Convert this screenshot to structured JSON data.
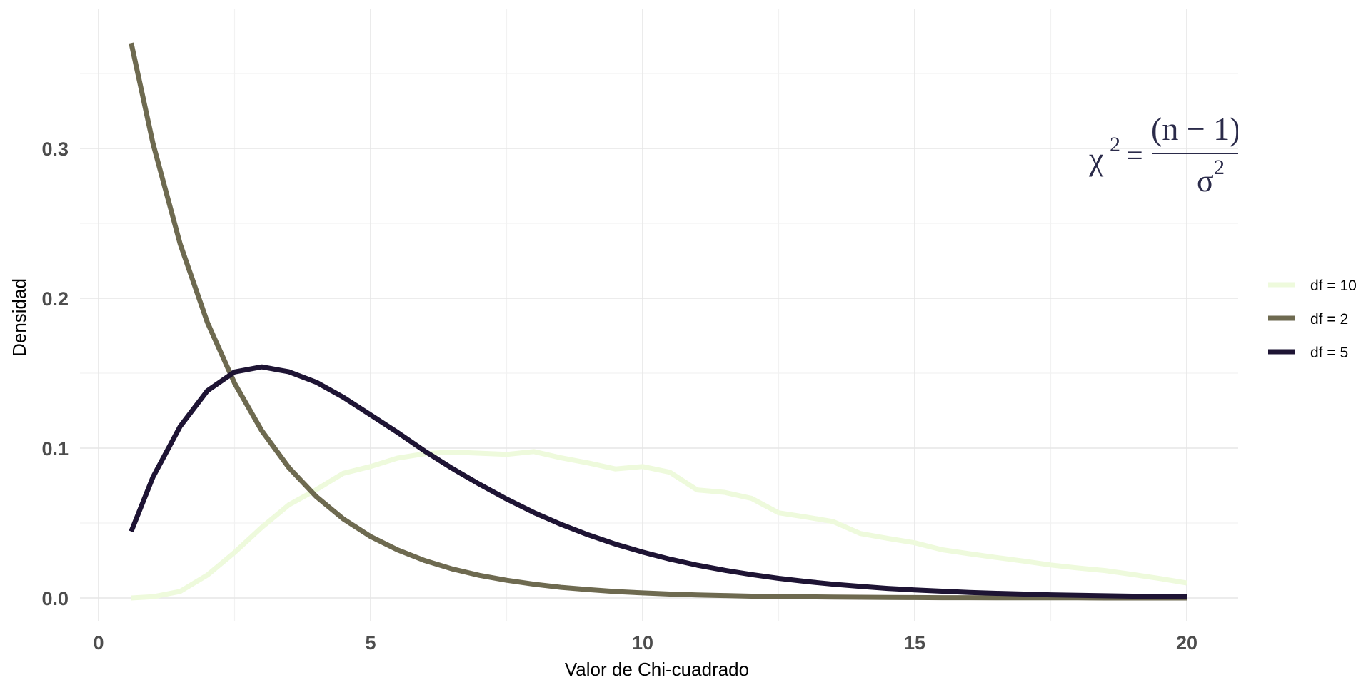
{
  "chart_data": {
    "type": "line",
    "title": "",
    "xlabel": "Valor de Chi-cuadrado",
    "ylabel": "Densidad",
    "xlim": [
      -0.3,
      21
    ],
    "ylim": [
      -0.017,
      0.39
    ],
    "x_ticks": [
      0,
      5,
      10,
      15,
      20
    ],
    "x_tick_labels": [
      "0",
      "5",
      "10",
      "15",
      "20"
    ],
    "y_ticks": [
      0.0,
      0.1,
      0.2,
      0.3
    ],
    "y_tick_labels": [
      "0.0",
      "0.1",
      "0.2",
      "0.3"
    ],
    "grid": true,
    "legend_position": "right",
    "x": [
      0.6,
      1,
      1.5,
      2,
      2.5,
      3,
      3.5,
      4,
      4.5,
      5,
      5.5,
      6,
      6.5,
      7,
      7.5,
      8,
      8.5,
      9,
      9.5,
      10,
      10.5,
      11,
      11.5,
      12,
      12.5,
      13,
      13.5,
      14,
      14.5,
      15,
      15.5,
      16,
      16.5,
      17,
      17.5,
      18,
      18.5,
      19,
      19.5,
      20
    ],
    "series": [
      {
        "name": "df = 10",
        "color": "#eefadc",
        "values": [
          2e-05,
          0.0008,
          0.0044,
          0.0153,
          0.0304,
          0.0471,
          0.0622,
          0.0722,
          0.0832,
          0.0877,
          0.0934,
          0.0963,
          0.0974,
          0.0966,
          0.0958,
          0.0977,
          0.0935,
          0.0901,
          0.0861,
          0.0877,
          0.0839,
          0.0721,
          0.0705,
          0.0665,
          0.0568,
          0.054,
          0.051,
          0.043,
          0.0398,
          0.0368,
          0.0322,
          0.0295,
          0.027,
          0.0246,
          0.022,
          0.02,
          0.0183,
          0.0157,
          0.013,
          0.01
        ]
      },
      {
        "name": "df = 2",
        "color": "#6e6a50",
        "values": [
          0.3704,
          0.3033,
          0.2362,
          0.1839,
          0.1433,
          0.1116,
          0.0869,
          0.0677,
          0.0527,
          0.041,
          0.032,
          0.0249,
          0.0194,
          0.0151,
          0.0118,
          0.0092,
          0.0071,
          0.0056,
          0.0043,
          0.0034,
          0.0026,
          0.002,
          0.0016,
          0.0012,
          0.001,
          0.0008,
          0.0006,
          0.0005,
          0.0004,
          0.0003,
          0.0002,
          0.0002,
          0.0001,
          0.0001,
          0.0001,
          0.0001,
          0.0,
          0.0,
          0.0,
          0.0
        ]
      },
      {
        "name": "df = 5",
        "color": "#1e1434",
        "values": [
          0.0444,
          0.0807,
          0.1145,
          0.1383,
          0.1508,
          0.1542,
          0.1509,
          0.144,
          0.1339,
          0.1222,
          0.1104,
          0.0979,
          0.0865,
          0.0759,
          0.066,
          0.057,
          0.0491,
          0.0421,
          0.0359,
          0.0306,
          0.0259,
          0.0219,
          0.0185,
          0.0156,
          0.0131,
          0.011,
          0.0092,
          0.0077,
          0.0064,
          0.0054,
          0.0045,
          0.0037,
          0.0031,
          0.0026,
          0.0021,
          0.0018,
          0.0015,
          0.0012,
          0.001,
          0.0008
        ]
      }
    ],
    "annotation": {
      "lhs": "χ",
      "lhs_sup": "2",
      "equals": "=",
      "numerator": "(n − 1)",
      "denominator": "σ",
      "denominator_sup": "2"
    }
  }
}
